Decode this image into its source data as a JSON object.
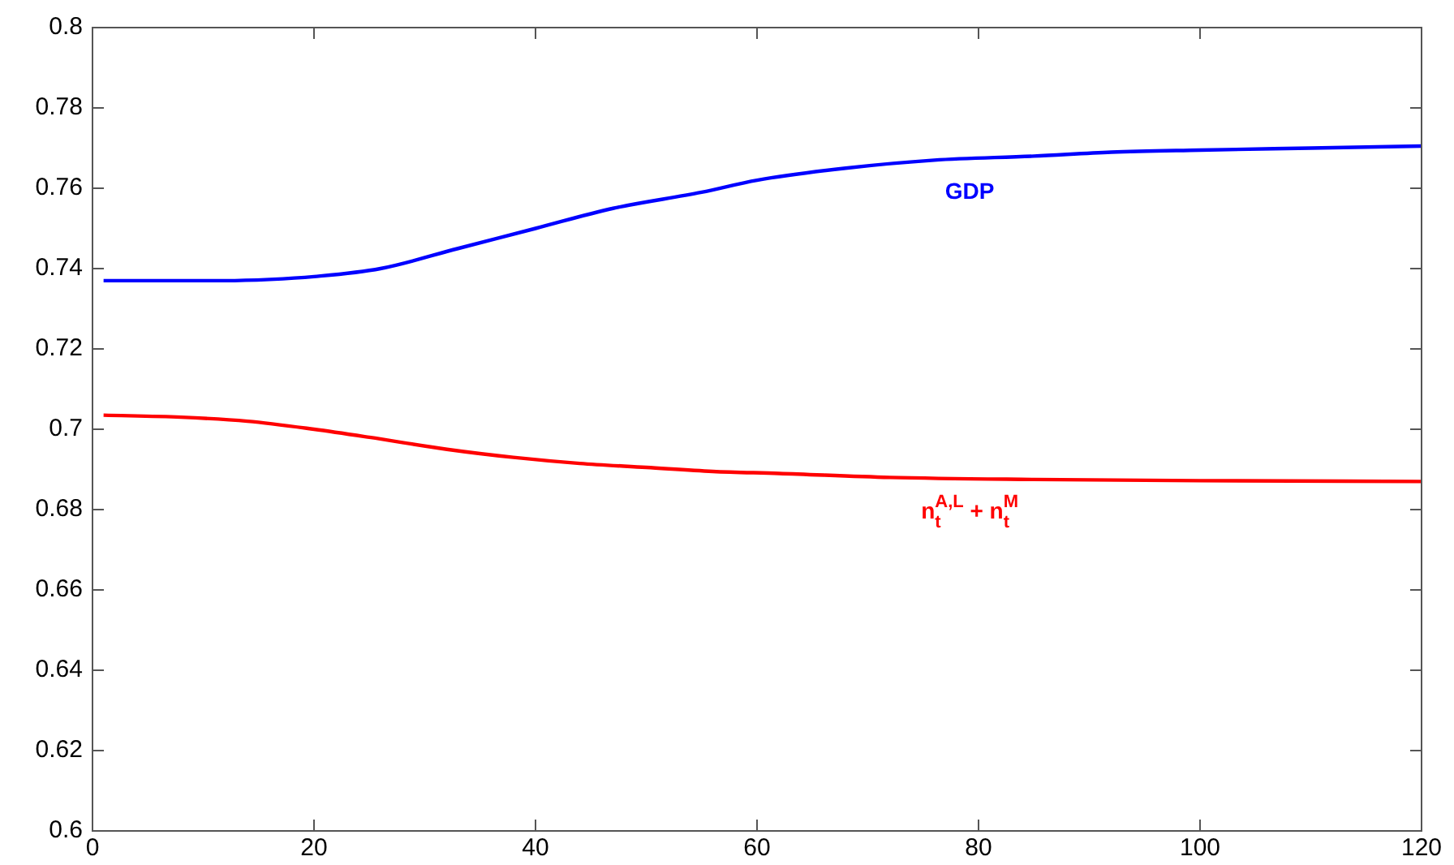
{
  "chart_data": {
    "type": "line",
    "xlim": [
      0,
      120
    ],
    "ylim": [
      0.6,
      0.8
    ],
    "xticks": [
      0,
      20,
      40,
      60,
      80,
      100,
      120
    ],
    "yticks": [
      0.6,
      0.62,
      0.64,
      0.66,
      0.68,
      {
        "value": 0.7,
        "label": "0.7"
      },
      0.72,
      0.74,
      0.76,
      0.78,
      {
        "value": 0.8,
        "label": "0.8"
      }
    ],
    "marker": "none",
    "line_style": "solid",
    "legend": false,
    "series": [
      {
        "name": "GDP",
        "color": "#0000ff",
        "x": [
          1,
          6,
          12,
          16,
          20,
          26,
          33,
          40,
          47,
          55,
          60,
          68,
          76,
          85,
          92,
          100,
          110,
          120
        ],
        "values": [
          0.737,
          0.737,
          0.737,
          0.7373,
          0.738,
          0.74,
          0.745,
          0.75,
          0.755,
          0.759,
          0.762,
          0.765,
          0.767,
          0.768,
          0.769,
          0.7695,
          0.77,
          0.7705
        ]
      },
      {
        "name": "n$_{t}$$^{A,L}$ + n$_{t}$$^{M}$",
        "color": "#ff0000",
        "x": [
          1,
          8,
          14,
          20,
          25,
          32,
          38,
          44,
          50,
          56,
          62,
          72,
          85,
          100,
          120
        ],
        "values": [
          0.7035,
          0.703,
          0.702,
          0.7,
          0.698,
          0.695,
          0.693,
          0.6915,
          0.6905,
          0.6895,
          0.689,
          0.688,
          0.6875,
          0.6872,
          0.687
        ]
      }
    ]
  }
}
